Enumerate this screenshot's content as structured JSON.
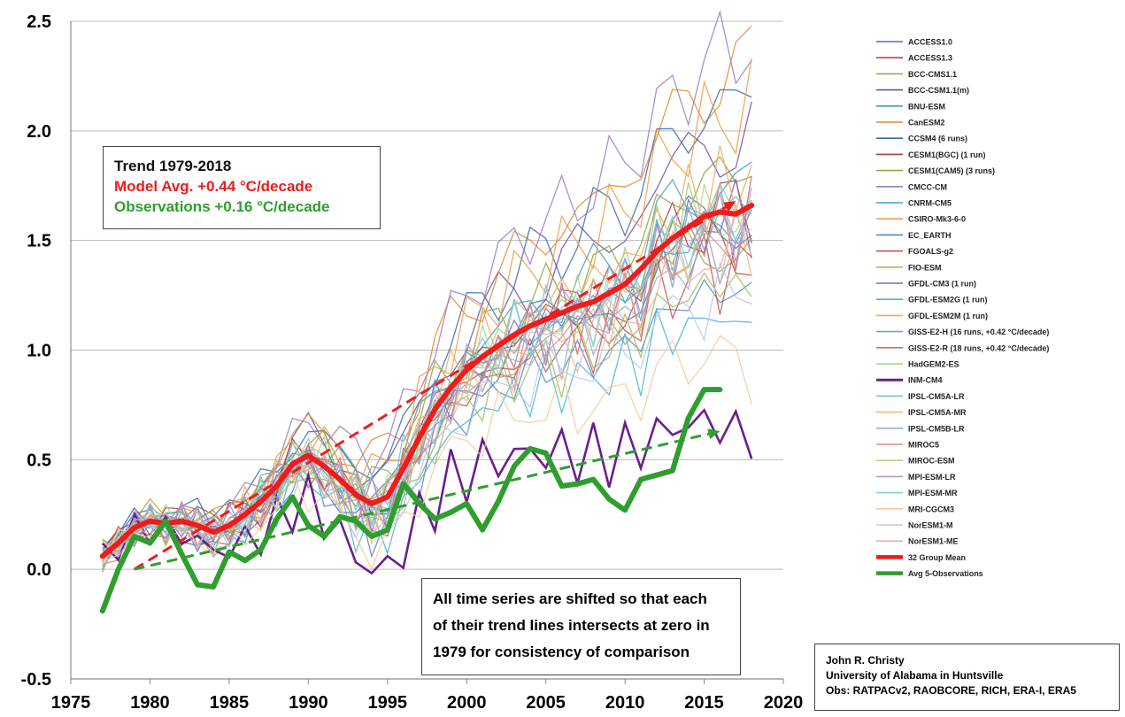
{
  "chart_data": {
    "type": "line",
    "title": "",
    "xlabel": "",
    "ylabel": "",
    "xlim": [
      1975,
      2020
    ],
    "ylim": [
      -0.5,
      2.5
    ],
    "x_ticks": [
      1975,
      1980,
      1985,
      1990,
      1995,
      2000,
      2005,
      2010,
      2015,
      2020
    ],
    "y_ticks": [
      -0.5,
      0.0,
      0.5,
      1.0,
      1.5,
      2.0,
      2.5
    ],
    "y_tick_labels": [
      "-0.5",
      "0.0",
      "0.5",
      "1.0",
      "1.5",
      "2.0",
      "2.5"
    ],
    "grid": "horizontal",
    "legend_position": "right",
    "model_years_start": 1977,
    "models": [
      {
        "name": "ACCESS1.0",
        "color": "#4a72b5"
      },
      {
        "name": "ACCESS1.3",
        "color": "#b04a44"
      },
      {
        "name": "BCC-CMS1.1",
        "color": "#8fb050"
      },
      {
        "name": "BCC-CSM1.1(m)",
        "color": "#6e52a0"
      },
      {
        "name": "BNU-ESM",
        "color": "#3f9fb8"
      },
      {
        "name": "CanESM2",
        "color": "#e0892e"
      },
      {
        "name": "CCSM4 (6 runs)",
        "color": "#3a6aa8"
      },
      {
        "name": "CESM1(BGC) (1 run)",
        "color": "#a83c38"
      },
      {
        "name": "CESM1(CAM5) (3 runs)",
        "color": "#86a848"
      },
      {
        "name": "CMCC-CM",
        "color": "#9a7cc4"
      },
      {
        "name": "CNRM-CM5",
        "color": "#35a5c2"
      },
      {
        "name": "CSIRO-Mk3-6-0",
        "color": "#f09a48"
      },
      {
        "name": "EC_EARTH",
        "color": "#5a84c4"
      },
      {
        "name": "FGOALS-g2",
        "color": "#c0544f"
      },
      {
        "name": "FIO-ESM",
        "color": "#9cc05e"
      },
      {
        "name": "GFDL-CM3 (1 run)",
        "color": "#8460b8"
      },
      {
        "name": "GFDL-ESM2G (1 run)",
        "color": "#4ab4d4"
      },
      {
        "name": "GFDL-ESM2M (1 run)",
        "color": "#f3a85a"
      },
      {
        "name": "GISS-E2-H (16 runs, +0.42 °C/decade)",
        "color": "#7c9cd0"
      },
      {
        "name": "GISS-E2-R (18 runs, +0.42 °C/decade)",
        "color": "#cc6e6a"
      },
      {
        "name": "HadGEM2-ES",
        "color": "#a8cc78"
      },
      {
        "name": "INM-CM4",
        "color": "#6a1f8c"
      },
      {
        "name": "IPSL-CM5A-LR",
        "color": "#6cc2dc"
      },
      {
        "name": "IPSL-CM5A-MR",
        "color": "#f6b676"
      },
      {
        "name": "IPSL-CM5B-LR",
        "color": "#94acd8"
      },
      {
        "name": "MIROC5",
        "color": "#d88c88"
      },
      {
        "name": "MIROC-ESM",
        "color": "#b4d28c"
      },
      {
        "name": "MPI-ESM-LR",
        "color": "#b09ad2"
      },
      {
        "name": "MPI-ESM-MR",
        "color": "#8ccae0"
      },
      {
        "name": "MRI-CGCM3",
        "color": "#f8c898"
      },
      {
        "name": "NorESM1-M",
        "color": "#b8c8e8"
      },
      {
        "name": "NorESM1-ME",
        "color": "#e8b0ac"
      }
    ],
    "model_end_values": [
      1.59,
      1.55,
      1.51,
      2.02,
      1.79,
      2.31,
      2.18,
      1.66,
      1.85,
      2.43,
      1.59,
      2.12,
      1.27,
      1.39,
      1.31,
      1.64,
      1.14,
      1.8,
      1.6,
      1.59,
      1.7,
      0.62,
      1.69,
      1.5,
      1.46,
      1.51,
      1.62,
      1.64,
      1.62,
      0.96,
      1.24,
      1.46
    ],
    "series": [
      {
        "name": "32 Group Mean",
        "color": "#ee1c1c",
        "x": [
          1977,
          1978,
          1979,
          1980,
          1981,
          1982,
          1983,
          1984,
          1985,
          1986,
          1987,
          1988,
          1989,
          1990,
          1991,
          1992,
          1993,
          1994,
          1995,
          1996,
          1997,
          1998,
          1999,
          2000,
          2001,
          2002,
          2003,
          2004,
          2005,
          2006,
          2007,
          2008,
          2009,
          2010,
          2011,
          2012,
          2013,
          2014,
          2015,
          2016,
          2017,
          2018
        ],
        "values": [
          0.06,
          0.12,
          0.19,
          0.22,
          0.21,
          0.22,
          0.2,
          0.17,
          0.2,
          0.25,
          0.31,
          0.38,
          0.48,
          0.52,
          0.47,
          0.41,
          0.34,
          0.3,
          0.33,
          0.46,
          0.6,
          0.73,
          0.83,
          0.91,
          0.97,
          1.02,
          1.07,
          1.11,
          1.14,
          1.17,
          1.2,
          1.22,
          1.26,
          1.3,
          1.37,
          1.45,
          1.51,
          1.56,
          1.61,
          1.63,
          1.62,
          1.66
        ]
      },
      {
        "name": "Avg 5-Observations",
        "color": "#2e9e2e",
        "x": [
          1977,
          1978,
          1979,
          1980,
          1981,
          1982,
          1983,
          1984,
          1985,
          1986,
          1987,
          1988,
          1989,
          1990,
          1991,
          1992,
          1993,
          1994,
          1995,
          1996,
          1997,
          1998,
          1999,
          2000,
          2001,
          2002,
          2003,
          2004,
          2005,
          2006,
          2007,
          2008,
          2009,
          2010,
          2011,
          2012,
          2013,
          2014,
          2015,
          2016
        ],
        "values": [
          -0.19,
          0.0,
          0.15,
          0.12,
          0.22,
          0.07,
          -0.07,
          -0.08,
          0.08,
          0.04,
          0.09,
          0.23,
          0.33,
          0.2,
          0.15,
          0.24,
          0.22,
          0.15,
          0.18,
          0.39,
          0.3,
          0.23,
          0.26,
          0.3,
          0.18,
          0.31,
          0.47,
          0.55,
          0.53,
          0.38,
          0.39,
          0.41,
          0.32,
          0.27,
          0.41,
          0.43,
          0.45,
          0.69,
          0.82,
          0.82
        ]
      }
    ],
    "trend_lines": [
      {
        "series": "32 Group Mean",
        "style": "dashed",
        "color": "#ee1c1c",
        "x": [
          1979,
          2017
        ],
        "values": [
          0.0,
          1.68
        ]
      },
      {
        "series": "Avg 5-Observations",
        "style": "dashed",
        "color": "#2e9e2e",
        "x": [
          1979,
          2016
        ],
        "values": [
          0.0,
          0.63
        ]
      }
    ]
  },
  "legend": {
    "items": [
      "ACCESS1.0",
      "ACCESS1.3",
      "BCC-CMS1.1",
      "BCC-CSM1.1(m)",
      "BNU-ESM",
      "CanESM2",
      "CCSM4 (6 runs)",
      "CESM1(BGC) (1 run)",
      "CESM1(CAM5) (3 runs)",
      "CMCC-CM",
      "CNRM-CM5",
      "CSIRO-Mk3-6-0",
      "EC_EARTH",
      "FGOALS-g2",
      "FIO-ESM",
      "GFDL-CM3 (1 run)",
      "GFDL-ESM2G (1 run)",
      "GFDL-ESM2M (1 run)",
      "GISS-E2-H (16 runs, +0.42 °C/decade)",
      "GISS-E2-R (18 runs, +0.42 °C/decade)",
      "HadGEM2-ES",
      "INM-CM4",
      "IPSL-CM5A-LR",
      "IPSL-CM5A-MR",
      "IPSL-CM5B-LR",
      "MIROC5",
      "MIROC-ESM",
      "MPI-ESM-LR",
      "MPI-ESM-MR",
      "MRI-CGCM3",
      "NorESM1-M",
      "NorESM1-ME",
      "32 Group Mean",
      "Avg 5-Observations"
    ]
  },
  "trend_box": {
    "heading": "Trend 1979-2018",
    "model_line": "Model Avg. +0.44 °C/decade",
    "obs_line": "Observations +0.16 °C/decade",
    "heading_color": "#111111",
    "model_color": "#ee1c1c",
    "obs_color": "#2e9e2e"
  },
  "note_box": {
    "line1": "All time series are shifted so that each",
    "line2": "of their trend lines intersects at zero in",
    "line3": "1979 for consistency of comparison"
  },
  "credit_box": {
    "author": "John R. Christy",
    "affiliation": "University of Alabama in Huntsville",
    "obs_sources": "Obs: RATPACv2, RAOBCORE, RICH, ERA-I, ERA5"
  }
}
